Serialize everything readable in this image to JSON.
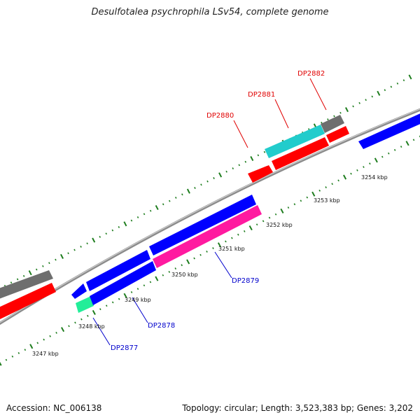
{
  "title": "Desulfotalea psychrophila LSv54, complete genome",
  "footer": {
    "accession": "Accession: NC_006138",
    "topology": "Topology: circular; Length: 3,523,383 bp; Genes: 3,202"
  },
  "colors": {
    "background": "#ffffff",
    "backbone": "#8c8c8c",
    "tick": "#1e7d1e",
    "forward_label": "#e00000",
    "reverse_label": "#0000cc",
    "gene_red": "#ff0000",
    "gene_blue": "#0000ff",
    "gene_gray": "#6e6e6e",
    "gene_cyan": "#22cccc",
    "gene_magenta": "#ff1aa0",
    "gene_mint": "#22ee99"
  },
  "ruler": {
    "unit": "kbp",
    "labels": [
      "3247 kbp",
      "3248 kbp",
      "3249 kbp",
      "3250 kbp",
      "3251 kbp",
      "3252 kbp",
      "3253 kbp",
      "3254 kbp"
    ]
  },
  "genes": [
    {
      "label": "DP2877",
      "strand": "reverse",
      "color": "gene_blue"
    },
    {
      "label": "DP2878",
      "strand": "reverse",
      "color": "gene_blue"
    },
    {
      "label": "DP2879",
      "strand": "reverse",
      "color": "gene_magenta"
    },
    {
      "label": "DP2880",
      "strand": "forward",
      "color": "gene_red"
    },
    {
      "label": "DP2881",
      "strand": "forward",
      "color": "gene_cyan"
    },
    {
      "label": "DP2882",
      "strand": "forward",
      "color": "gene_gray"
    }
  ]
}
